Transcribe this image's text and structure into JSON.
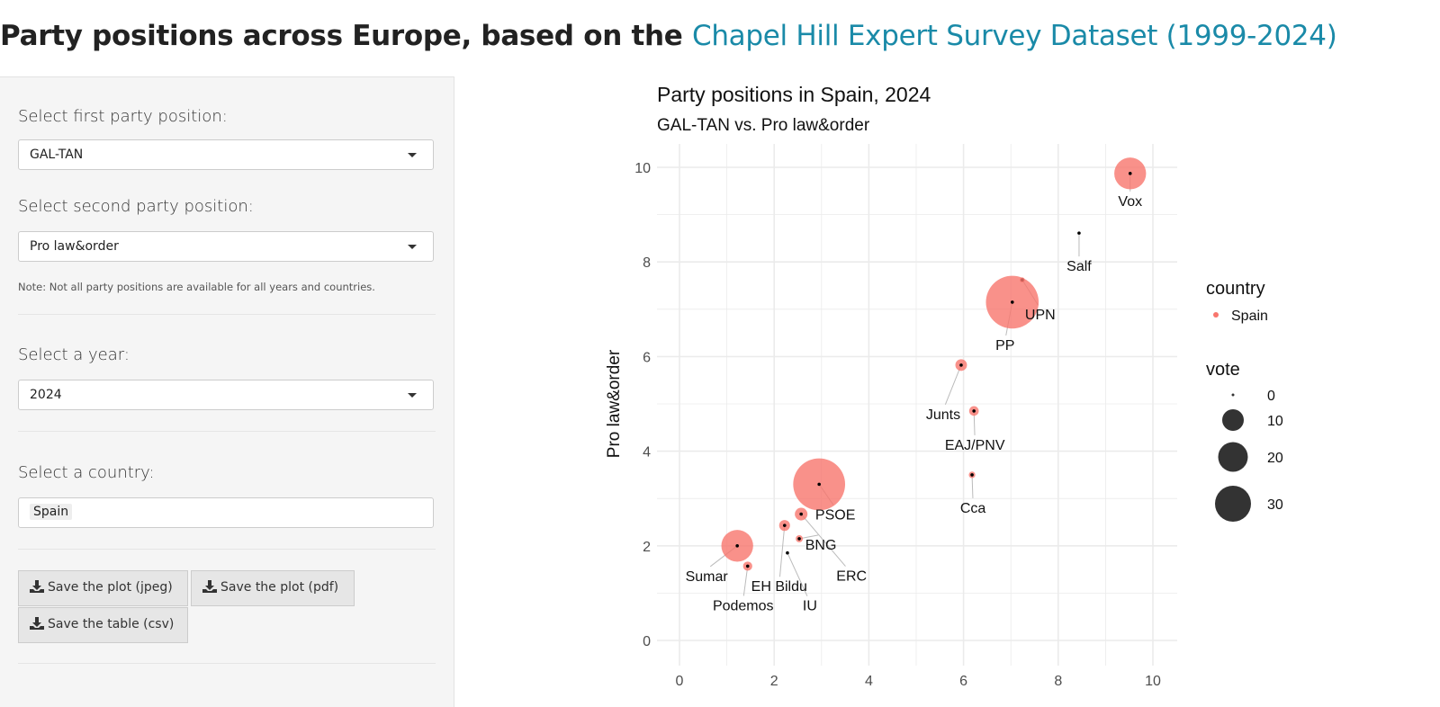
{
  "header": {
    "title_bold": "Party positions across Europe, based on the ",
    "title_link": "Chapel Hill Expert Survey Dataset (1999-2024)"
  },
  "sidebar": {
    "first_label": "Select first party position:",
    "first_value": "GAL-TAN",
    "second_label": "Select second party position:",
    "second_value": "Pro law&order",
    "note": "Note: Not all party positions are available for all years and countries.",
    "year_label": "Select a year:",
    "year_value": "2024",
    "country_label": "Select a country:",
    "country_value": "Spain",
    "buttons": [
      "Save the plot (jpeg)",
      "Save the plot (pdf)",
      "Save the table (csv)"
    ]
  },
  "chart_data": {
    "type": "scatter",
    "title": "Party positions in Spain, 2024",
    "subtitle": "GAL-TAN vs. Pro law&order",
    "xlabel": "",
    "ylabel": "Pro law&order",
    "xlim": [
      0,
      10
    ],
    "ylim": [
      0,
      10
    ],
    "xticks": [
      "0",
      "2",
      "4",
      "6",
      "8",
      "10"
    ],
    "yticks": [
      "0",
      "2",
      "4",
      "6",
      "8",
      "10"
    ],
    "grid": true,
    "point_color": "#F8766D",
    "legend": {
      "placement": "right",
      "color_title": "country",
      "color_entries": [
        "Spain"
      ],
      "size_title": "vote",
      "size_entries": [
        "0",
        "10",
        "20",
        "30"
      ]
    },
    "points": [
      {
        "label": "Vox",
        "x": 9.52,
        "y": 9.87,
        "vote": 12
      },
      {
        "label": "Salf",
        "x": 8.44,
        "y": 8.61,
        "vote": 0
      },
      {
        "label": "UPN",
        "x": 7.24,
        "y": 7.62,
        "vote": 0.3
      },
      {
        "label": "PP",
        "x": 7.03,
        "y": 7.15,
        "vote": 33
      },
      {
        "label": "Junts",
        "x": 5.95,
        "y": 5.82,
        "vote": 1.6
      },
      {
        "label": "EAJ/PNV",
        "x": 6.22,
        "y": 4.85,
        "vote": 1.1
      },
      {
        "label": "Cca",
        "x": 6.18,
        "y": 3.5,
        "vote": 0.5
      },
      {
        "label": "PSOE",
        "x": 2.95,
        "y": 3.3,
        "vote": 32
      },
      {
        "label": "ERC",
        "x": 2.57,
        "y": 2.67,
        "vote": 1.9
      },
      {
        "label": "EH Bildu",
        "x": 2.22,
        "y": 2.43,
        "vote": 1.4
      },
      {
        "label": "BNG",
        "x": 2.53,
        "y": 2.15,
        "vote": 0.6
      },
      {
        "label": "IU",
        "x": 2.28,
        "y": 1.85,
        "vote": 0
      },
      {
        "label": "Sumar",
        "x": 1.22,
        "y": 2.0,
        "vote": 12
      },
      {
        "label": "Podemos",
        "x": 1.44,
        "y": 1.57,
        "vote": 1.0
      }
    ]
  }
}
